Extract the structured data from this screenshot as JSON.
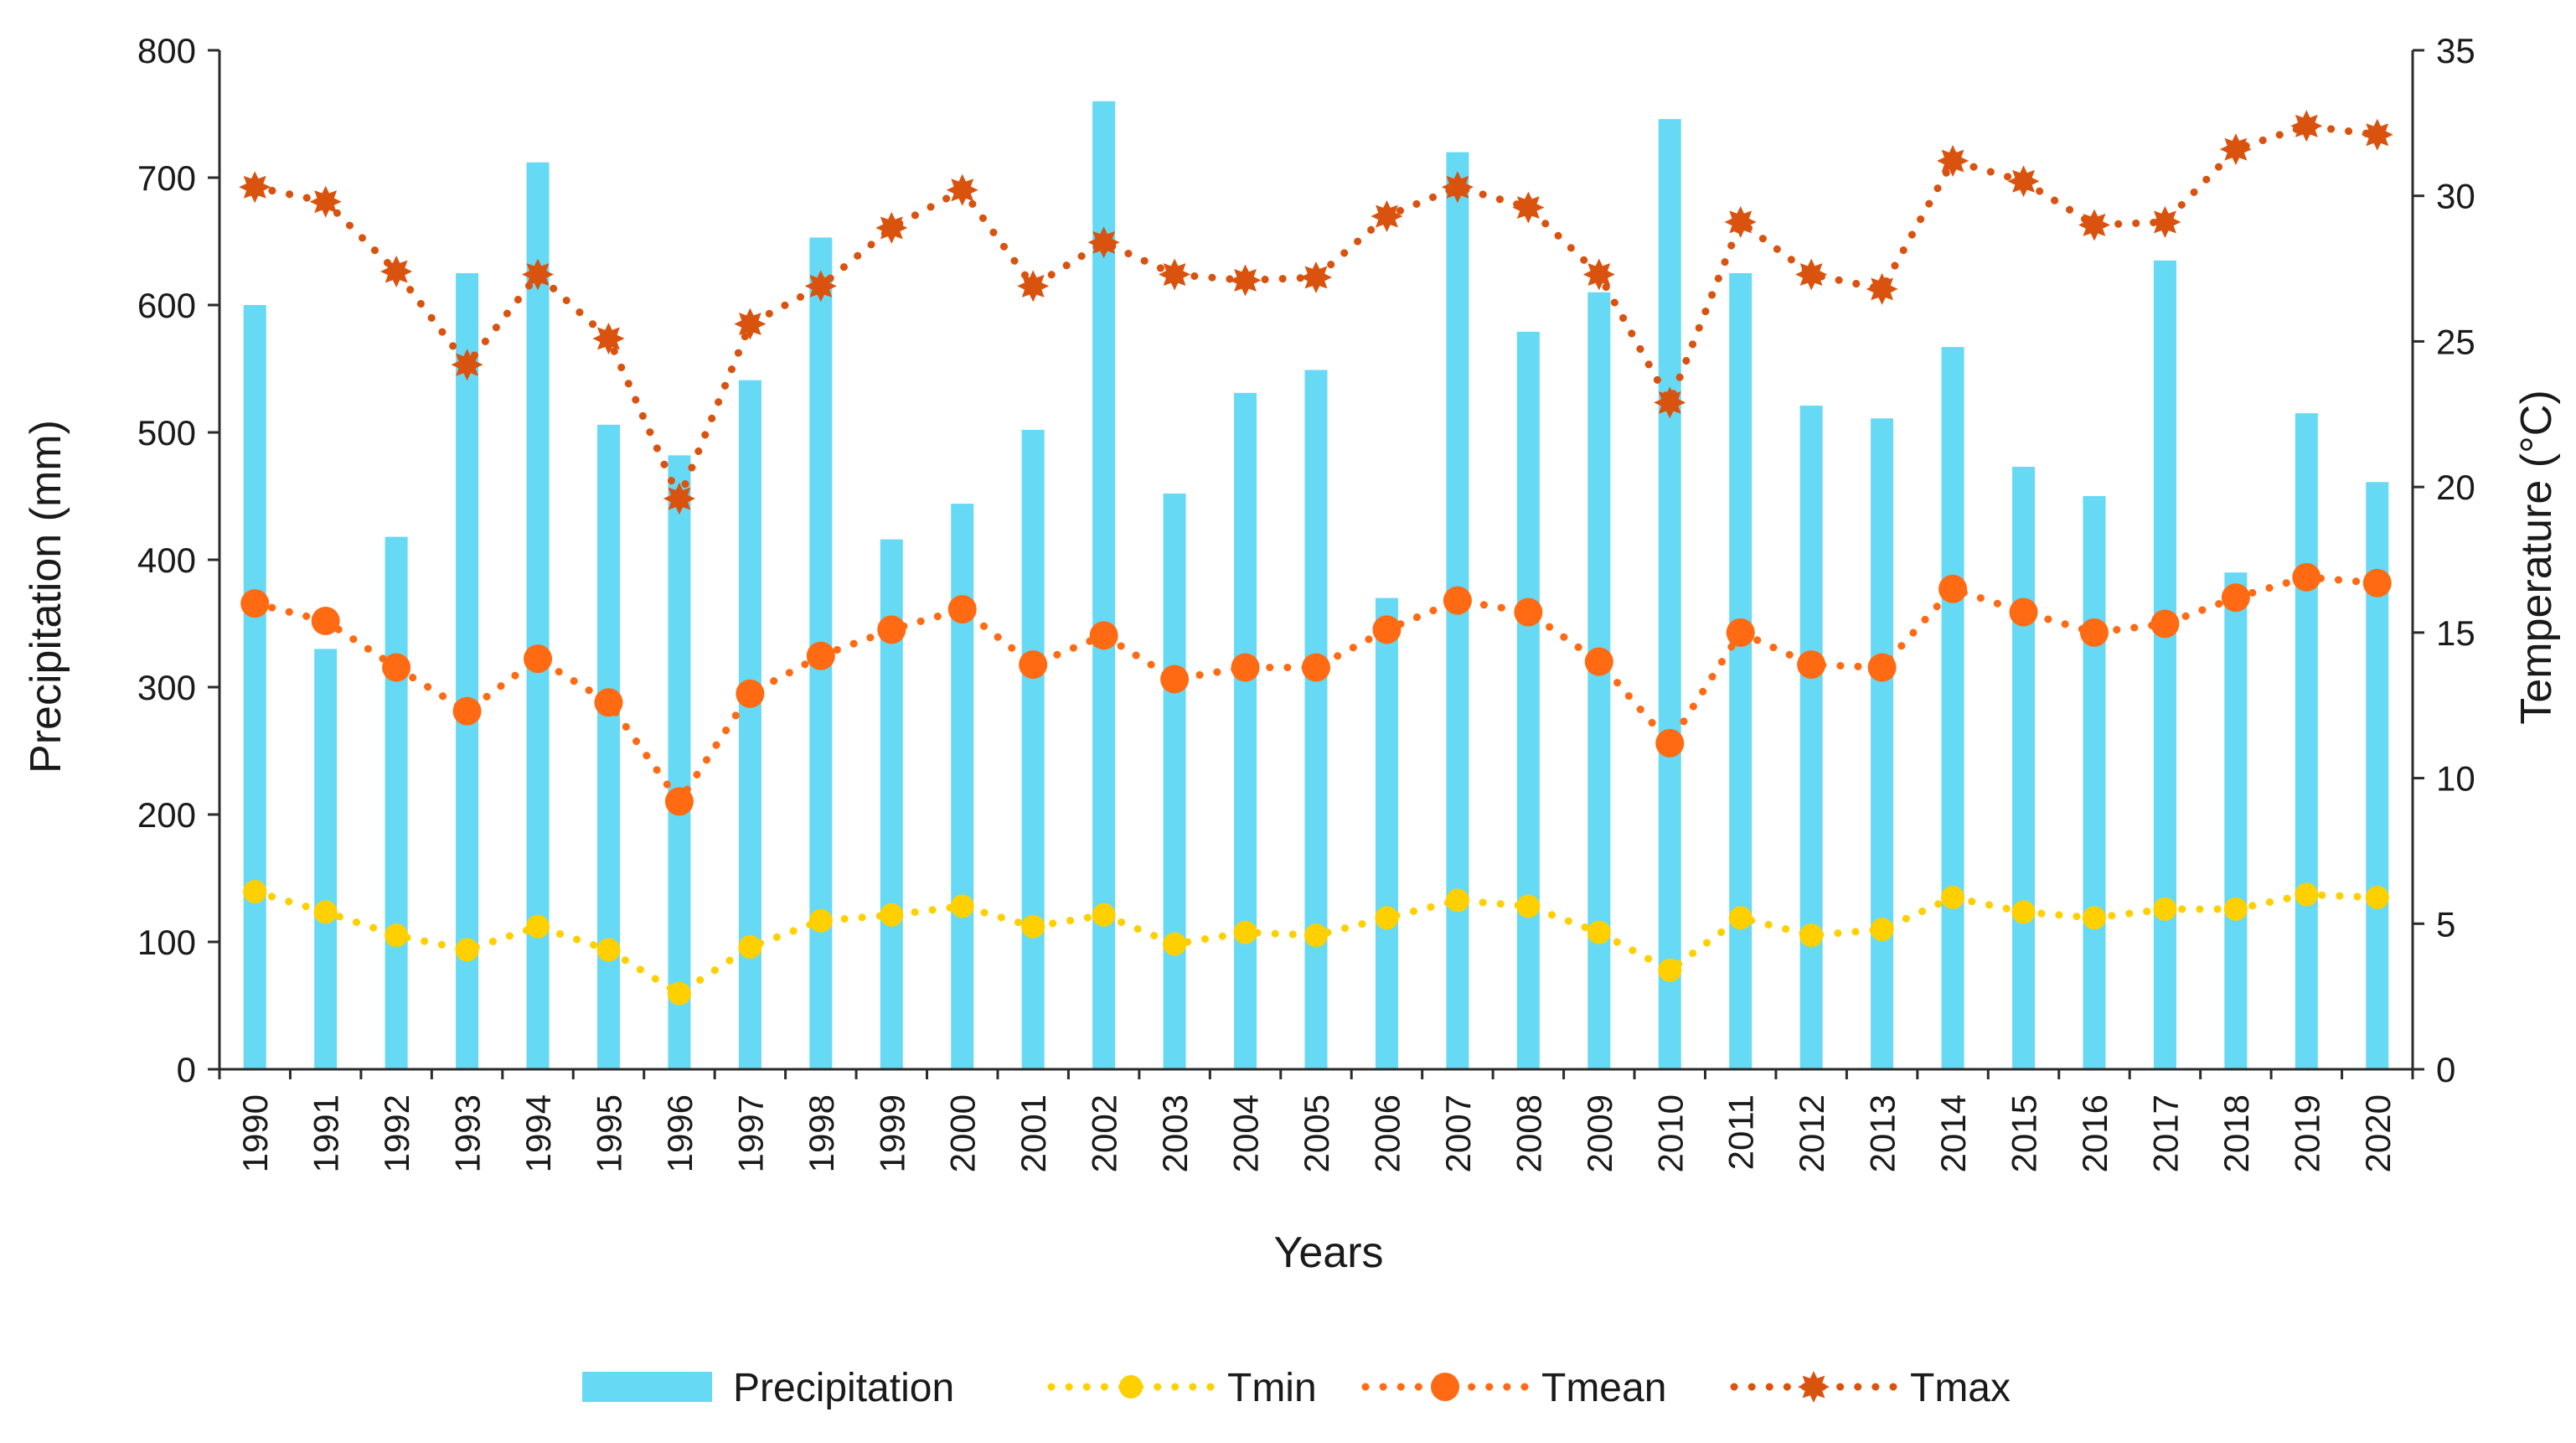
{
  "chart_data": {
    "type": "bar+line",
    "title": "",
    "categories": [
      "1990",
      "1991",
      "1992",
      "1993",
      "1994",
      "1995",
      "1996",
      "1997",
      "1998",
      "1999",
      "2000",
      "2001",
      "2002",
      "2003",
      "2004",
      "2005",
      "2006",
      "2007",
      "2008",
      "2009",
      "2010",
      "2011",
      "2012",
      "2013",
      "2014",
      "2015",
      "2016",
      "2017",
      "2018",
      "2019",
      "2020"
    ],
    "xlabel": "Years",
    "ylabel": "Precipitation (mm)",
    "ylabel_right": "Temperature  (°C)",
    "ylim": [
      0,
      800
    ],
    "ylim_right": [
      0,
      35
    ],
    "yticks": [
      0,
      100,
      200,
      300,
      400,
      500,
      600,
      700,
      800
    ],
    "yticks_right": [
      0,
      5,
      10,
      15,
      20,
      25,
      30,
      35
    ],
    "grid": false,
    "legend_position": "bottom",
    "series": [
      {
        "name": "Precipitation",
        "kind": "bar",
        "axis": "left",
        "color": "#66d9f5",
        "values": [
          600,
          330,
          418,
          625,
          712,
          506,
          482,
          541,
          653,
          416,
          444,
          502,
          760,
          452,
          531,
          549,
          370,
          720,
          579,
          610,
          746,
          625,
          521,
          511,
          567,
          473,
          450,
          635,
          390,
          515,
          461
        ]
      },
      {
        "name": "Tmin",
        "kind": "line",
        "axis": "right",
        "color": "#ffd000",
        "marker": "circle",
        "values": [
          6.1,
          5.4,
          4.6,
          4.1,
          4.9,
          4.1,
          2.6,
          4.2,
          5.1,
          5.3,
          5.6,
          4.9,
          5.3,
          4.3,
          4.7,
          4.6,
          5.2,
          5.8,
          5.6,
          4.7,
          3.4,
          5.2,
          4.6,
          4.8,
          5.9,
          5.4,
          5.2,
          5.5,
          5.5,
          6.0,
          5.9
        ]
      },
      {
        "name": "Tmean",
        "kind": "line",
        "axis": "right",
        "color": "#ff6a13",
        "marker": "circle",
        "values": [
          16.0,
          15.4,
          13.8,
          12.3,
          14.1,
          12.6,
          9.2,
          12.9,
          14.2,
          15.1,
          15.8,
          13.9,
          14.9,
          13.4,
          13.8,
          13.8,
          15.1,
          16.1,
          15.7,
          14.0,
          11.2,
          15.0,
          13.9,
          13.8,
          16.5,
          15.7,
          15.0,
          15.3,
          16.2,
          16.9,
          16.7
        ]
      },
      {
        "name": "Tmax",
        "kind": "line",
        "axis": "right",
        "color": "#d9530f",
        "marker": "star",
        "values": [
          30.3,
          29.8,
          27.4,
          24.2,
          27.3,
          25.1,
          19.6,
          25.6,
          26.9,
          28.9,
          30.2,
          26.9,
          28.4,
          27.3,
          27.1,
          27.2,
          29.3,
          30.3,
          29.6,
          27.3,
          22.9,
          29.1,
          27.3,
          26.8,
          31.2,
          30.5,
          29.0,
          29.1,
          31.6,
          32.4,
          32.1
        ]
      }
    ]
  }
}
